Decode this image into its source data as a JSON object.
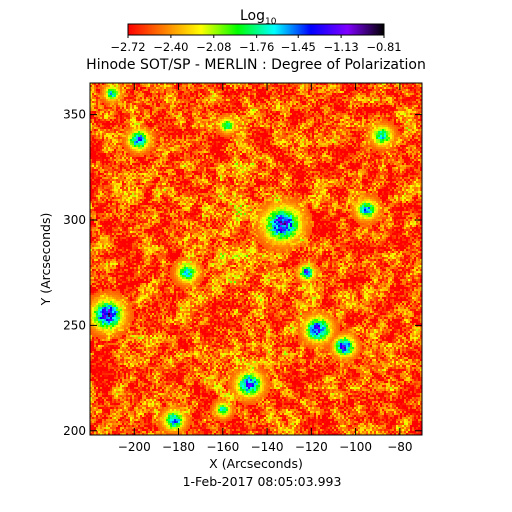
{
  "chart_data": {
    "type": "heatmap",
    "title": "Hinode SOT/SP - MERLIN : Degree of Polarization",
    "xlabel": "X (Arcseconds)",
    "ylabel": "Y (Arcseconds)",
    "footer": "1-Feb-2017 08:05:03.993",
    "xlim": [
      -220,
      -70
    ],
    "ylim": [
      198,
      365
    ],
    "x_ticks": [
      -200,
      -180,
      -160,
      -140,
      -120,
      -100,
      -80
    ],
    "y_ticks": [
      200,
      250,
      300,
      350
    ],
    "x_tick_labels": [
      "−200",
      "−180",
      "−160",
      "−140",
      "−120",
      "−100",
      "−80"
    ],
    "y_tick_labels": [
      "200",
      "250",
      "300",
      "350"
    ],
    "colorbar": {
      "title_main": "Log",
      "title_sub": "10",
      "range": [
        -2.72,
        -0.81
      ],
      "ticks": [
        -2.72,
        -2.4,
        -2.08,
        -1.76,
        -1.45,
        -1.13,
        -0.81
      ],
      "tick_labels": [
        "−2.72",
        "−2.40",
        "−2.08",
        "−1.76",
        "−1.45",
        "−1.13",
        "−0.81"
      ],
      "colors": [
        "#ff0000",
        "#ff8000",
        "#ffff00",
        "#00ff00",
        "#00ffff",
        "#0000ff",
        "#8000ff",
        "#000000"
      ]
    },
    "background_value": -2.55,
    "features": [
      {
        "x": -212,
        "y": 255,
        "size": 6,
        "value": -1.15
      },
      {
        "x": -148,
        "y": 222,
        "size": 5,
        "value": -1.3
      },
      {
        "x": -133,
        "y": 298,
        "size": 7,
        "value": -1.2
      },
      {
        "x": -198,
        "y": 338,
        "size": 4,
        "value": -1.35
      },
      {
        "x": -117,
        "y": 248,
        "size": 5,
        "value": -1.25
      },
      {
        "x": -105,
        "y": 240,
        "size": 4,
        "value": -1.2
      },
      {
        "x": -176,
        "y": 275,
        "size": 4,
        "value": -1.6
      },
      {
        "x": -182,
        "y": 205,
        "size": 4,
        "value": -1.45
      },
      {
        "x": -95,
        "y": 305,
        "size": 4,
        "value": -1.55
      },
      {
        "x": -88,
        "y": 340,
        "size": 4,
        "value": -1.6
      },
      {
        "x": -122,
        "y": 275,
        "size": 3,
        "value": -1.35
      },
      {
        "x": -158,
        "y": 345,
        "size": 3,
        "value": -1.7
      },
      {
        "x": -210,
        "y": 360,
        "size": 3,
        "value": -1.65
      },
      {
        "x": -160,
        "y": 210,
        "size": 3,
        "value": -1.7
      }
    ]
  }
}
